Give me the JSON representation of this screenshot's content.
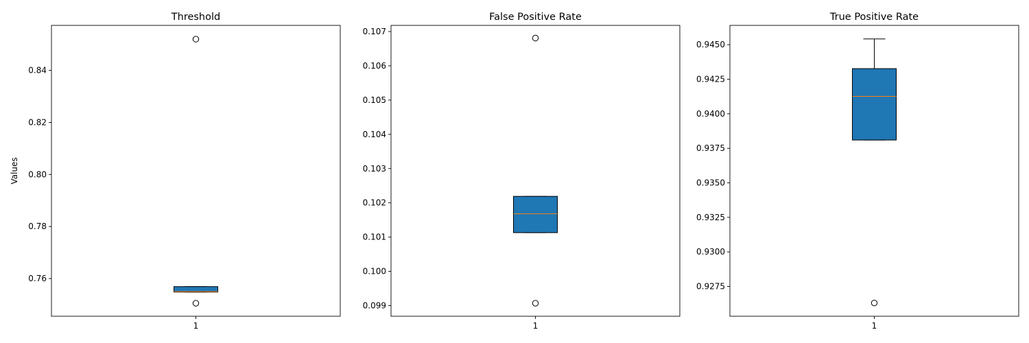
{
  "chart_data": [
    {
      "type": "boxplot",
      "title": "Threshold",
      "ylabel": "Values",
      "categories": [
        "1"
      ],
      "ylim": [
        0.7455,
        0.8573
      ],
      "yticks": [
        0.76,
        0.78,
        0.8,
        0.82,
        0.84
      ],
      "ytick_labels": [
        "0.76",
        "0.78",
        "0.80",
        "0.82",
        "0.84"
      ],
      "box": {
        "whisker_low": 0.7548,
        "q1": 0.7548,
        "median": 0.755,
        "q3": 0.7569,
        "whisker_high": 0.7569
      },
      "outliers": [
        0.852,
        0.7505
      ],
      "colors": {
        "box_fill": "#1f77b4",
        "median": "#ff7f0e",
        "edge": "#000000"
      }
    },
    {
      "type": "boxplot",
      "title": "False Positive Rate",
      "ylabel": "",
      "categories": [
        "1"
      ],
      "ylim": [
        0.09869,
        0.10718
      ],
      "yticks": [
        0.099,
        0.1,
        0.101,
        0.102,
        0.103,
        0.104,
        0.105,
        0.106,
        0.107
      ],
      "ytick_labels": [
        "0.099",
        "0.100",
        "0.101",
        "0.102",
        "0.103",
        "0.104",
        "0.105",
        "0.106",
        "0.107"
      ],
      "box": {
        "whisker_low": 0.10113,
        "q1": 0.10113,
        "median": 0.10168,
        "q3": 0.10219,
        "whisker_high": 0.10219
      },
      "outliers": [
        0.10681,
        0.09907
      ],
      "colors": {
        "box_fill": "#1f77b4",
        "median": "#ff7f0e",
        "edge": "#000000"
      }
    },
    {
      "type": "boxplot",
      "title": "True Positive Rate",
      "ylabel": "",
      "categories": [
        "1"
      ],
      "ylim": [
        0.92534,
        0.9464
      ],
      "yticks": [
        0.9275,
        0.93,
        0.9325,
        0.935,
        0.9375,
        0.94,
        0.9425,
        0.945
      ],
      "ytick_labels": [
        "0.9275",
        "0.9300",
        "0.9325",
        "0.9350",
        "0.9375",
        "0.9400",
        "0.9425",
        "0.9450"
      ],
      "box": {
        "whisker_low": 0.9381,
        "q1": 0.9381,
        "median": 0.94126,
        "q3": 0.94327,
        "whisker_high": 0.94542
      },
      "outliers": [
        0.9263
      ],
      "colors": {
        "box_fill": "#1f77b4",
        "median": "#ff7f0e",
        "edge": "#000000"
      }
    }
  ]
}
